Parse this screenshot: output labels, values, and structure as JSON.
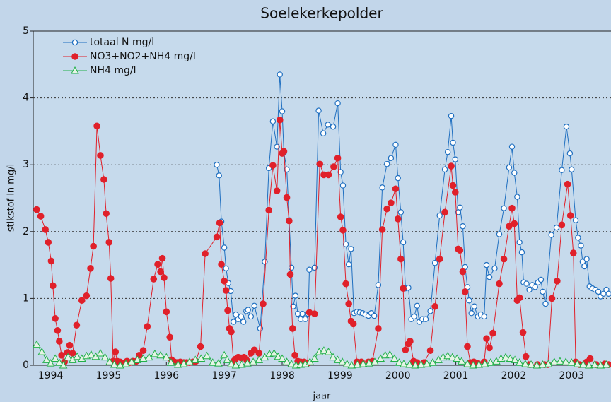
{
  "chart_data": {
    "type": "line",
    "title": "Soelekerkepolder",
    "xlabel": "jaar",
    "ylabel": "stikstof in mg/l",
    "xlim": [
      1993.7,
      2003.68
    ],
    "xticks": [
      1994,
      1995,
      1996,
      1997,
      1998,
      1999,
      2000,
      2001,
      2002,
      2003
    ],
    "ylim": [
      0,
      5
    ],
    "yticks": [
      0,
      1,
      2,
      3,
      4,
      5
    ],
    "grid": true,
    "legend": "upper left",
    "series": [
      {
        "name": "totaal N mg/l",
        "color": "#1f6fc0",
        "marker": "circle-open",
        "x": [
          1996.87,
          1996.91,
          1996.95,
          1997.0,
          1997.03,
          1997.07,
          1997.11,
          1997.16,
          1997.2,
          1997.24,
          1997.29,
          1997.33,
          1997.38,
          1997.41,
          1997.46,
          1997.52,
          1997.62,
          1997.7,
          1997.77,
          1997.84,
          1997.91,
          1997.96,
          1998.0,
          1998.03,
          1998.08,
          1998.12,
          1998.16,
          1998.19,
          1998.23,
          1998.27,
          1998.32,
          1998.35,
          1998.4,
          1998.45,
          1998.47,
          1998.56,
          1998.63,
          1998.71,
          1998.79,
          1998.88,
          1998.96,
          1999.01,
          1999.05,
          1999.1,
          1999.15,
          1999.19,
          1999.24,
          1999.29,
          1999.34,
          1999.39,
          1999.44,
          1999.49,
          1999.54,
          1999.59,
          1999.66,
          1999.73,
          1999.81,
          1999.88,
          1999.96,
          2000.0,
          2000.05,
          2000.09,
          2000.13,
          2000.18,
          2000.23,
          2000.28,
          2000.33,
          2000.37,
          2000.42,
          2000.48,
          2000.56,
          2000.64,
          2000.72,
          2000.81,
          2000.86,
          2000.92,
          2000.95,
          2000.99,
          2001.04,
          2001.07,
          2001.12,
          2001.16,
          2001.2,
          2001.23,
          2001.27,
          2001.32,
          2001.38,
          2001.43,
          2001.49,
          2001.53,
          2001.58,
          2001.67,
          2001.75,
          2001.83,
          2001.92,
          2001.97,
          2002.01,
          2002.06,
          2002.1,
          2002.14,
          2002.17,
          2002.22,
          2002.27,
          2002.32,
          2002.37,
          2002.42,
          2002.47,
          2002.5,
          2002.55,
          2002.65,
          2002.74,
          2002.83,
          2002.91,
          2002.97,
          2003.0,
          2003.07,
          2003.11,
          2003.16,
          2003.19,
          2003.22,
          2003.26,
          2003.31,
          2003.36,
          2003.41,
          2003.46,
          2003.5,
          2003.55,
          2003.6,
          2003.64
        ],
        "values": [
          3.0,
          2.84,
          2.15,
          1.76,
          1.45,
          1.23,
          1.11,
          0.65,
          0.76,
          0.69,
          0.73,
          0.65,
          0.81,
          0.83,
          0.73,
          0.89,
          0.55,
          1.55,
          2.95,
          3.65,
          3.27,
          4.35,
          3.8,
          3.18,
          2.93,
          2.17,
          1.46,
          0.88,
          1.04,
          0.77,
          0.69,
          0.77,
          0.69,
          0.77,
          1.43,
          1.46,
          3.81,
          3.47,
          3.6,
          3.57,
          3.92,
          2.89,
          2.69,
          1.81,
          1.51,
          1.74,
          0.78,
          0.8,
          0.79,
          0.78,
          0.76,
          0.74,
          0.78,
          0.74,
          1.2,
          2.66,
          3.01,
          3.1,
          3.3,
          2.8,
          2.29,
          1.84,
          1.15,
          1.16,
          0.69,
          0.73,
          0.89,
          0.65,
          0.69,
          0.69,
          0.81,
          1.53,
          2.24,
          2.93,
          3.19,
          3.73,
          3.33,
          3.08,
          2.29,
          2.36,
          2.08,
          1.47,
          1.17,
          0.97,
          0.78,
          0.88,
          0.73,
          0.76,
          0.73,
          1.5,
          1.32,
          1.45,
          1.96,
          2.35,
          2.96,
          3.27,
          2.88,
          2.52,
          1.84,
          1.69,
          1.24,
          1.22,
          1.13,
          1.2,
          1.17,
          1.24,
          1.28,
          1.1,
          0.92,
          1.95,
          2.06,
          2.92,
          3.57,
          3.17,
          2.93,
          2.17,
          1.91,
          1.79,
          1.55,
          1.48,
          1.59,
          1.18,
          1.15,
          1.13,
          1.1,
          1.03,
          1.07,
          1.13,
          1.07
        ]
      },
      {
        "name": "NO3+NO2+NH4 mg/l",
        "color": "#e0202a",
        "marker": "circle",
        "x": [
          1993.76,
          1993.83,
          1993.91,
          1993.96,
          1994.01,
          1994.04,
          1994.08,
          1994.12,
          1994.15,
          1994.19,
          1994.24,
          1994.29,
          1994.33,
          1994.38,
          1994.45,
          1994.54,
          1994.62,
          1994.69,
          1994.74,
          1994.8,
          1994.86,
          1994.92,
          1994.96,
          1995.01,
          1995.04,
          1995.08,
          1995.12,
          1995.15,
          1995.2,
          1995.26,
          1995.32,
          1995.37,
          1995.42,
          1995.48,
          1995.53,
          1995.6,
          1995.67,
          1995.78,
          1995.85,
          1995.9,
          1995.93,
          1995.96,
          1996.0,
          1996.06,
          1996.09,
          1996.14,
          1996.19,
          1996.24,
          1996.3,
          1996.35,
          1996.4,
          1996.46,
          1996.51,
          1996.59,
          1996.67,
          1996.87,
          1996.92,
          1996.95,
          1997.0,
          1997.03,
          1997.06,
          1997.09,
          1997.12,
          1997.16,
          1997.19,
          1997.24,
          1997.29,
          1997.34,
          1997.39,
          1997.46,
          1997.52,
          1997.6,
          1997.67,
          1997.77,
          1997.84,
          1997.91,
          1997.96,
          1998.0,
          1998.03,
          1998.08,
          1998.12,
          1998.14,
          1998.18,
          1998.22,
          1998.27,
          1998.32,
          1998.38,
          1998.44,
          1998.47,
          1998.56,
          1998.65,
          1998.72,
          1998.8,
          1998.89,
          1998.96,
          1999.01,
          1999.05,
          1999.1,
          1999.15,
          1999.19,
          1999.23,
          1999.29,
          1999.37,
          1999.49,
          1999.56,
          1999.66,
          1999.73,
          1999.81,
          1999.88,
          1999.96,
          2000.0,
          2000.05,
          2000.09,
          2000.13,
          2000.18,
          2000.21,
          2000.27,
          2000.33,
          2000.45,
          2000.56,
          2000.64,
          2000.72,
          2000.81,
          2000.92,
          2000.95,
          2000.99,
          2001.04,
          2001.07,
          2001.12,
          2001.16,
          2001.2,
          2001.25,
          2001.31,
          2001.38,
          2001.49,
          2001.53,
          2001.58,
          2001.64,
          2001.75,
          2001.83,
          2001.92,
          2001.97,
          2002.01,
          2002.06,
          2002.1,
          2002.16,
          2002.21,
          2002.28,
          2002.41,
          2002.53,
          2002.59,
          2002.66,
          2002.75,
          2002.83,
          2002.93,
          2002.98,
          2003.03,
          2003.07,
          2003.14,
          2003.26,
          2003.32,
          2003.42,
          2003.57,
          2003.64
        ],
        "values": [
          2.33,
          2.23,
          2.03,
          1.84,
          1.56,
          1.19,
          0.7,
          0.52,
          0.36,
          0.15,
          0.05,
          0.19,
          0.3,
          0.18,
          0.6,
          0.97,
          1.04,
          1.45,
          1.78,
          3.58,
          3.14,
          2.78,
          2.27,
          1.84,
          1.3,
          0.06,
          0.2,
          0.06,
          0.05,
          0.03,
          0.06,
          0.04,
          0.06,
          0.06,
          0.15,
          0.22,
          0.58,
          1.29,
          1.51,
          1.4,
          1.6,
          1.31,
          0.8,
          0.42,
          0.08,
          0.05,
          0.04,
          0.05,
          0.04,
          0.04,
          0.04,
          0.05,
          0.06,
          0.28,
          1.67,
          1.92,
          2.13,
          1.51,
          1.26,
          1.12,
          0.82,
          0.55,
          0.5,
          0.06,
          0.09,
          0.12,
          0.11,
          0.12,
          0.07,
          0.18,
          0.23,
          0.18,
          0.92,
          2.32,
          2.99,
          2.61,
          3.67,
          3.17,
          3.2,
          2.51,
          2.16,
          1.36,
          0.55,
          0.15,
          0.06,
          0.05,
          0.05,
          0.03,
          0.79,
          0.77,
          3.01,
          2.85,
          2.85,
          2.97,
          3.1,
          2.22,
          2.02,
          1.22,
          0.92,
          0.66,
          0.62,
          0.05,
          0.05,
          0.05,
          0.06,
          0.55,
          2.03,
          2.34,
          2.43,
          2.64,
          2.19,
          1.59,
          1.15,
          0.23,
          0.32,
          0.36,
          0.06,
          0.04,
          0.04,
          0.22,
          0.88,
          1.59,
          2.29,
          2.98,
          2.69,
          2.59,
          1.74,
          1.72,
          1.4,
          1.1,
          0.28,
          0.04,
          0.05,
          0.03,
          0.05,
          0.4,
          0.26,
          0.48,
          1.22,
          1.59,
          2.08,
          2.35,
          2.12,
          0.97,
          1.01,
          0.49,
          0.13,
          0.01,
          0.01,
          0.01,
          0.01,
          1.0,
          1.26,
          2.1,
          2.71,
          2.24,
          1.68,
          0.05,
          0.01,
          0.05,
          0.1,
          0.01,
          0.02,
          0.01
        ]
      },
      {
        "name": "NH4 mg/l",
        "color": "#22b04a",
        "marker": "triangle-open",
        "x": [
          1993.76,
          1993.85,
          1993.93,
          1994.0,
          1994.08,
          1994.15,
          1994.22,
          1994.3,
          1994.38,
          1994.46,
          1994.54,
          1994.62,
          1994.7,
          1994.78,
          1994.86,
          1994.94,
          1995.02,
          1995.1,
          1995.2,
          1995.3,
          1995.4,
          1995.5,
          1995.6,
          1995.7,
          1995.8,
          1995.9,
          1996.0,
          1996.08,
          1996.2,
          1996.3,
          1996.4,
          1996.5,
          1996.6,
          1996.7,
          1996.8,
          1996.9,
          1997.0,
          1997.05,
          1997.12,
          1997.2,
          1997.3,
          1997.4,
          1997.5,
          1997.6,
          1997.7,
          1997.78,
          1997.86,
          1997.93,
          1998.0,
          1998.08,
          1998.16,
          1998.24,
          1998.32,
          1998.4,
          1998.48,
          1998.56,
          1998.64,
          1998.72,
          1998.8,
          1998.88,
          1998.96,
          1999.04,
          1999.12,
          1999.2,
          1999.3,
          1999.4,
          1999.5,
          1999.6,
          1999.7,
          1999.78,
          1999.86,
          1999.94,
          2000.02,
          2000.1,
          2000.2,
          2000.3,
          2000.4,
          2000.5,
          2000.6,
          2000.7,
          2000.78,
          2000.86,
          2000.94,
          2001.02,
          2001.1,
          2001.2,
          2001.3,
          2001.4,
          2001.5,
          2001.6,
          2001.7,
          2001.78,
          2001.86,
          2001.94,
          2002.02,
          2002.1,
          2002.2,
          2002.3,
          2002.4,
          2002.5,
          2002.6,
          2002.7,
          2002.8,
          2002.9,
          2003.0,
          2003.1,
          2003.2,
          2003.3,
          2003.4,
          2003.5,
          2003.6
        ],
        "values": [
          0.31,
          0.2,
          0.08,
          0.03,
          0.1,
          0.04,
          0.0,
          0.12,
          0.08,
          0.13,
          0.1,
          0.14,
          0.16,
          0.13,
          0.18,
          0.12,
          0.05,
          0.01,
          0.0,
          0.02,
          0.05,
          0.08,
          0.1,
          0.12,
          0.17,
          0.15,
          0.12,
          0.04,
          0.01,
          0.02,
          0.05,
          0.08,
          0.1,
          0.14,
          0.04,
          0.03,
          0.15,
          0.08,
          0.02,
          0.0,
          0.01,
          0.03,
          0.05,
          0.08,
          0.12,
          0.17,
          0.18,
          0.13,
          0.1,
          0.05,
          0.02,
          0.0,
          0.01,
          0.02,
          0.05,
          0.1,
          0.2,
          0.22,
          0.2,
          0.12,
          0.08,
          0.05,
          0.02,
          0.0,
          0.01,
          0.02,
          0.03,
          0.05,
          0.1,
          0.15,
          0.16,
          0.1,
          0.04,
          0.02,
          0.01,
          0.0,
          0.01,
          0.02,
          0.04,
          0.08,
          0.12,
          0.14,
          0.12,
          0.1,
          0.06,
          0.02,
          0.0,
          0.01,
          0.02,
          0.04,
          0.06,
          0.1,
          0.12,
          0.1,
          0.08,
          0.04,
          0.02,
          0.01,
          0.0,
          0.01,
          0.02,
          0.05,
          0.06,
          0.05,
          0.04,
          0.02,
          0.01,
          0.0,
          0.01,
          0.0,
          0.01
        ]
      }
    ]
  }
}
